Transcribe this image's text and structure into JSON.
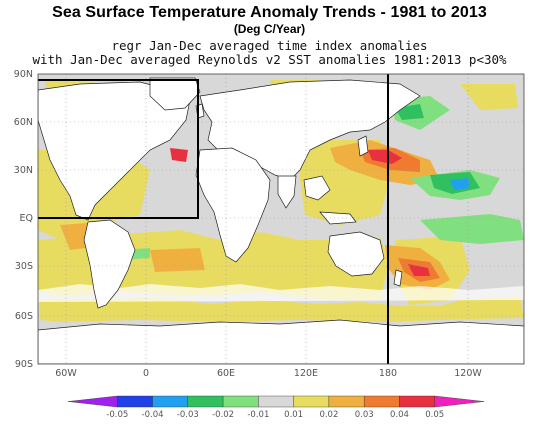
{
  "title": {
    "main": "Sea Surface Temperature Anomaly Trends - 1981 to 2013",
    "units": "(Deg C/Year)",
    "subtitle1": "regr Jan-Dec averaged time index anomalies",
    "subtitle2": "with Jan-Dec averaged Reynolds v2 SST anomalies 1981:2013 p<30%"
  },
  "map": {
    "projection": "equirectangular, centered at 150E",
    "lat_ticks": [
      "90N",
      "60N",
      "30N",
      "EQ",
      "30S",
      "60S",
      "90S"
    ],
    "lon_ticks": [
      "60W",
      "0",
      "60E",
      "120E",
      "180",
      "120W"
    ],
    "grid": "dotted every 30 degrees",
    "land_color": "#ffffff",
    "insignificant_color": "#d8d8d8",
    "overlay_lines": {
      "box": "north Atlantic box, 80W to 0 longitude, EQ to 90N",
      "vertical_line": "180 longitude"
    }
  },
  "colorbar": {
    "labels": [
      "-0.05",
      "-0.04",
      "-0.03",
      "-0.02",
      "-0.01",
      "0.01",
      "0.02",
      "0.03",
      "0.04",
      "0.05"
    ],
    "colors": [
      "#a020f0",
      "#2040e8",
      "#20a0f0",
      "#30c060",
      "#80e080",
      "#d8d8d8",
      "#e8dc60",
      "#f0b040",
      "#f07a30",
      "#e83040",
      "#f020c0"
    ]
  }
}
